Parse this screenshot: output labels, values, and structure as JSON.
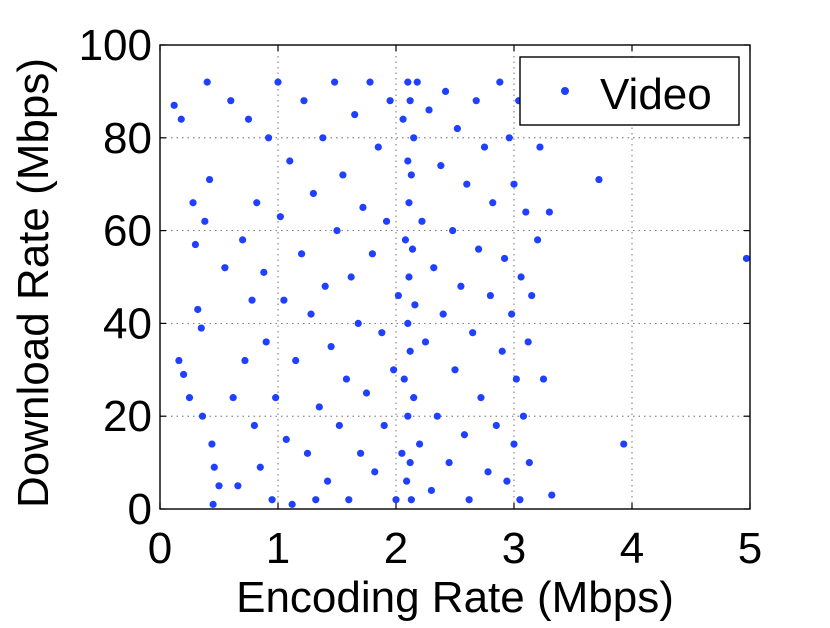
{
  "chart_data": {
    "type": "scatter",
    "xlabel": "Encoding Rate (Mbps)",
    "ylabel": "Download Rate (Mbps)",
    "xlim": [
      0,
      5
    ],
    "ylim": [
      0,
      100
    ],
    "x_ticks": [
      "0",
      "1",
      "2",
      "3",
      "4",
      "5"
    ],
    "y_ticks": [
      "0",
      "20",
      "40",
      "60",
      "80",
      "100"
    ],
    "grid": true,
    "legend_position": "top-right",
    "series": [
      {
        "name": "Video",
        "color": "#2040ff",
        "points": [
          [
            0.12,
            87
          ],
          [
            0.18,
            84
          ],
          [
            0.16,
            32
          ],
          [
            0.2,
            29
          ],
          [
            0.25,
            24
          ],
          [
            0.28,
            66
          ],
          [
            0.3,
            57
          ],
          [
            0.32,
            43
          ],
          [
            0.35,
            39
          ],
          [
            0.36,
            20
          ],
          [
            0.38,
            62
          ],
          [
            0.4,
            92
          ],
          [
            0.42,
            71
          ],
          [
            0.44,
            14
          ],
          [
            0.46,
            9
          ],
          [
            0.45,
            1
          ],
          [
            0.5,
            5
          ],
          [
            0.55,
            52
          ],
          [
            0.6,
            88
          ],
          [
            0.62,
            24
          ],
          [
            0.66,
            5
          ],
          [
            0.7,
            58
          ],
          [
            0.72,
            32
          ],
          [
            0.75,
            84
          ],
          [
            0.78,
            45
          ],
          [
            0.8,
            18
          ],
          [
            0.82,
            66
          ],
          [
            0.85,
            9
          ],
          [
            0.88,
            51
          ],
          [
            0.9,
            36
          ],
          [
            0.92,
            80
          ],
          [
            0.95,
            2
          ],
          [
            0.98,
            24
          ],
          [
            1.0,
            92
          ],
          [
            1.02,
            63
          ],
          [
            1.05,
            45
          ],
          [
            1.07,
            15
          ],
          [
            1.1,
            75
          ],
          [
            1.12,
            1
          ],
          [
            1.15,
            32
          ],
          [
            1.2,
            55
          ],
          [
            1.22,
            88
          ],
          [
            1.25,
            12
          ],
          [
            1.28,
            42
          ],
          [
            1.3,
            68
          ],
          [
            1.32,
            2
          ],
          [
            1.35,
            22
          ],
          [
            1.38,
            80
          ],
          [
            1.4,
            48
          ],
          [
            1.42,
            6
          ],
          [
            1.45,
            35
          ],
          [
            1.48,
            92
          ],
          [
            1.5,
            60
          ],
          [
            1.52,
            18
          ],
          [
            1.55,
            72
          ],
          [
            1.58,
            28
          ],
          [
            1.6,
            2
          ],
          [
            1.62,
            50
          ],
          [
            1.65,
            85
          ],
          [
            1.68,
            40
          ],
          [
            1.7,
            12
          ],
          [
            1.72,
            65
          ],
          [
            1.75,
            25
          ],
          [
            1.78,
            92
          ],
          [
            1.8,
            55
          ],
          [
            1.82,
            8
          ],
          [
            1.85,
            78
          ],
          [
            1.88,
            38
          ],
          [
            1.9,
            18
          ],
          [
            1.92,
            62
          ],
          [
            1.95,
            88
          ],
          [
            1.98,
            30
          ],
          [
            2.0,
            2
          ],
          [
            2.02,
            46
          ],
          [
            2.05,
            12
          ],
          [
            2.06,
            84
          ],
          [
            2.07,
            28
          ],
          [
            2.08,
            58
          ],
          [
            2.09,
            6
          ],
          [
            2.1,
            92
          ],
          [
            2.1,
            75
          ],
          [
            2.1,
            40
          ],
          [
            2.1,
            20
          ],
          [
            2.11,
            66
          ],
          [
            2.11,
            50
          ],
          [
            2.12,
            10
          ],
          [
            2.12,
            88
          ],
          [
            2.12,
            34
          ],
          [
            2.13,
            72
          ],
          [
            2.13,
            2
          ],
          [
            2.14,
            56
          ],
          [
            2.15,
            24
          ],
          [
            2.15,
            80
          ],
          [
            2.16,
            44
          ],
          [
            2.18,
            92
          ],
          [
            2.2,
            14
          ],
          [
            2.22,
            62
          ],
          [
            2.25,
            36
          ],
          [
            2.28,
            86
          ],
          [
            2.3,
            4
          ],
          [
            2.32,
            52
          ],
          [
            2.35,
            20
          ],
          [
            2.38,
            74
          ],
          [
            2.4,
            42
          ],
          [
            2.42,
            90
          ],
          [
            2.45,
            10
          ],
          [
            2.48,
            60
          ],
          [
            2.5,
            30
          ],
          [
            2.52,
            82
          ],
          [
            2.55,
            48
          ],
          [
            2.58,
            16
          ],
          [
            2.6,
            70
          ],
          [
            2.62,
            2
          ],
          [
            2.65,
            38
          ],
          [
            2.68,
            88
          ],
          [
            2.7,
            56
          ],
          [
            2.72,
            24
          ],
          [
            2.75,
            78
          ],
          [
            2.78,
            8
          ],
          [
            2.8,
            46
          ],
          [
            2.82,
            66
          ],
          [
            2.85,
            18
          ],
          [
            2.88,
            92
          ],
          [
            2.9,
            34
          ],
          [
            2.92,
            54
          ],
          [
            2.94,
            6
          ],
          [
            2.96,
            80
          ],
          [
            2.98,
            42
          ],
          [
            3.0,
            14
          ],
          [
            3.0,
            70
          ],
          [
            3.02,
            28
          ],
          [
            3.04,
            88
          ],
          [
            3.05,
            2
          ],
          [
            3.06,
            50
          ],
          [
            3.08,
            20
          ],
          [
            3.1,
            64
          ],
          [
            3.12,
            36
          ],
          [
            3.12,
            84
          ],
          [
            3.13,
            10
          ],
          [
            3.15,
            46
          ],
          [
            3.2,
            58
          ],
          [
            3.22,
            78
          ],
          [
            3.25,
            28
          ],
          [
            3.3,
            64
          ],
          [
            3.32,
            3
          ],
          [
            3.72,
            71
          ],
          [
            3.93,
            14
          ],
          [
            4.97,
            54
          ]
        ]
      }
    ]
  }
}
